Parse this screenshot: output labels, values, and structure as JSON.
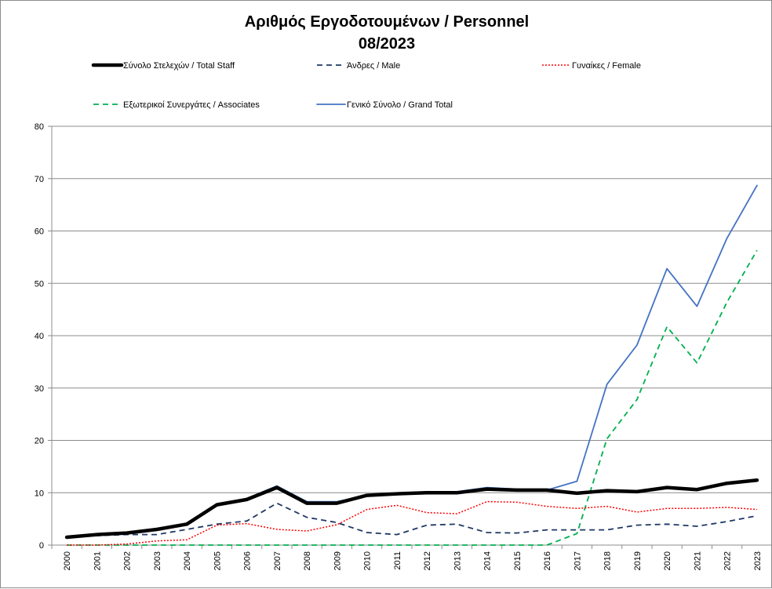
{
  "chart_data": {
    "type": "line",
    "title": "Αριθμός Εργοδοτουμένων / Personnel",
    "subtitle": "08/2023",
    "xlabel": "",
    "ylabel": "",
    "ylim": [
      0,
      80
    ],
    "y_ticks": [
      0,
      10,
      20,
      30,
      40,
      50,
      60,
      70,
      80
    ],
    "grid": "horizontal",
    "legend_position": "top",
    "x": [
      "2000",
      "2001",
      "2002",
      "2003",
      "2004",
      "2005",
      "2006",
      "2007",
      "2008",
      "2009",
      "2010",
      "2011",
      "2012",
      "2013",
      "2014",
      "2015",
      "2016",
      "2017",
      "2018",
      "2019",
      "2020",
      "2021",
      "2022",
      "2023"
    ],
    "series": [
      {
        "name": "Σύνολο Στελεχών / Total Staff",
        "color": "#000000",
        "dash": "solid-thick",
        "values": [
          1.5,
          2.0,
          2.3,
          3.0,
          4.0,
          7.7,
          8.7,
          11.0,
          8.0,
          8.0,
          9.5,
          9.8,
          10.0,
          10.0,
          10.7,
          10.5,
          10.5,
          9.9,
          10.4,
          10.2,
          11.0,
          10.6,
          11.8,
          12.4
        ]
      },
      {
        "name": "Άνδρες / Male",
        "color": "#1f3864",
        "dash": "dashed",
        "values": [
          1.5,
          1.8,
          2.0,
          2.0,
          3.0,
          4.0,
          4.6,
          8.0,
          5.3,
          4.3,
          2.4,
          2.0,
          3.8,
          4.0,
          2.4,
          2.3,
          2.9,
          2.9,
          2.9,
          3.8,
          4.0,
          3.6,
          4.5,
          5.6
        ]
      },
      {
        "name": "Γυναίκες / Female",
        "color": "#ff0000",
        "dash": "dotted",
        "values": [
          0,
          0,
          0.2,
          0.8,
          1.0,
          3.8,
          4.1,
          3.0,
          2.7,
          3.9,
          6.8,
          7.6,
          6.2,
          6.0,
          8.3,
          8.2,
          7.4,
          7.0,
          7.4,
          6.3,
          7.0,
          7.0,
          7.2,
          6.8
        ]
      },
      {
        "name": "Εξωτερικοί Συνεργάτες / Associates",
        "color": "#00b050",
        "dash": "dashed",
        "values": [
          0,
          0,
          0,
          0,
          0,
          0,
          0,
          0,
          0,
          0,
          0,
          0,
          0,
          0,
          0,
          0,
          0,
          2.2,
          20.3,
          27.8,
          41.7,
          34.8,
          46.4,
          56.3
        ]
      },
      {
        "name": "Γενικό Σύνολο / Grand Total",
        "color": "#4472c4",
        "dash": "solid",
        "values": [
          1.5,
          2.0,
          2.3,
          3.0,
          4.0,
          7.9,
          8.9,
          11.3,
          8.3,
          8.3,
          9.5,
          9.8,
          10.2,
          10.2,
          11.0,
          10.7,
          10.5,
          12.2,
          30.7,
          38.2,
          52.8,
          45.6,
          58.6,
          68.7
        ]
      }
    ]
  }
}
